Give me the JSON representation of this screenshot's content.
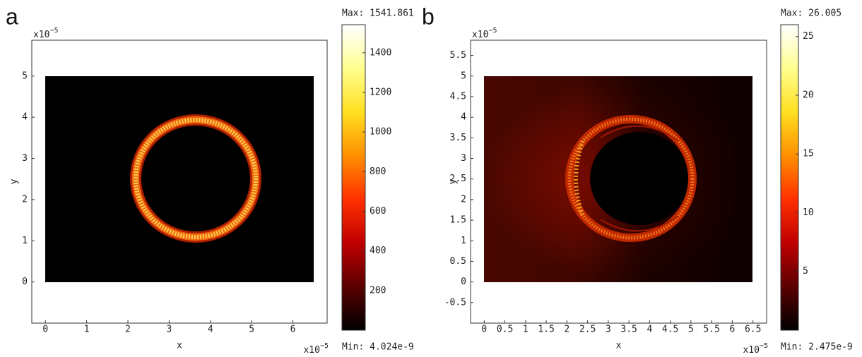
{
  "chart_data": [
    {
      "type": "heatmap",
      "panel_label": "a",
      "xlabel": "x",
      "ylabel": "y",
      "exponent_base": "x10",
      "exponent": "−5",
      "xlim": [
        -0.33,
        6.83
      ],
      "ylim": [
        -1,
        5.87
      ],
      "xticks": [
        0,
        1,
        2,
        3,
        4,
        5,
        6
      ],
      "yticks": [
        0,
        1,
        2,
        3,
        4,
        5
      ],
      "colormap": "hot",
      "clim": [
        {
          "value": 4.024e-09,
          "label": "Min: 4.024e-9"
        },
        {
          "value": 1541.861,
          "label": "Max: 1541.861"
        }
      ],
      "cticks": [
        200,
        400,
        600,
        800,
        1000,
        1200,
        1400
      ]
    },
    {
      "type": "heatmap",
      "panel_label": "b",
      "xlabel": "x",
      "ylabel": "y",
      "exponent_base": "x10",
      "exponent": "−5",
      "xlim": [
        -0.33,
        6.83
      ],
      "ylim": [
        -1,
        5.87
      ],
      "xticks": [
        0,
        0.5,
        1,
        1.5,
        2,
        2.5,
        3,
        3.5,
        4,
        4.5,
        5,
        5.5,
        6,
        6.5
      ],
      "yticks": [
        -0.5,
        0,
        0.5,
        1,
        1.5,
        2,
        2.5,
        3,
        3.5,
        4,
        4.5,
        5,
        5.5
      ],
      "colormap": "hot",
      "clim": [
        {
          "value": 2.475e-09,
          "label": "Min: 2.475e-9"
        },
        {
          "value": 26.005,
          "label": "Max: 26.005"
        }
      ],
      "cticks": [
        5,
        10,
        15,
        20,
        25
      ]
    }
  ]
}
